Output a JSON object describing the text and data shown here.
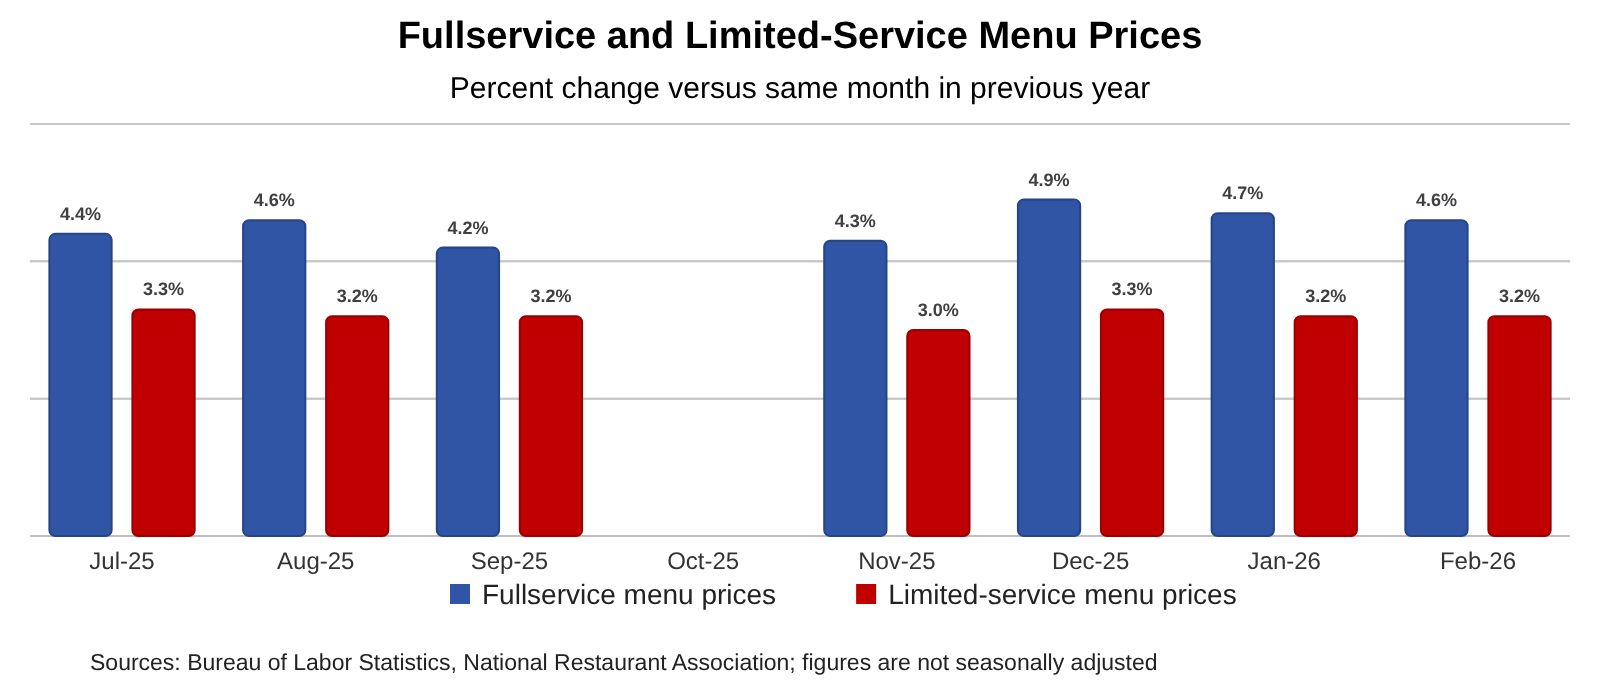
{
  "chart_data": {
    "type": "bar",
    "title": "Fullservice and Limited-Service Menu Prices",
    "subtitle": "Percent change versus same month in previous year",
    "categories": [
      "Jul-25",
      "Aug-25",
      "Sep-25",
      "Oct-25",
      "Nov-25",
      "Dec-25",
      "Jan-26",
      "Feb-26"
    ],
    "series": [
      {
        "name": "Fullservice menu prices",
        "color": "#2f55a4",
        "values": [
          4.4,
          4.6,
          4.2,
          null,
          4.3,
          4.9,
          4.7,
          4.6
        ],
        "value_labels": [
          "4.4%",
          "4.6%",
          "4.2%",
          null,
          "4.3%",
          "4.9%",
          "4.7%",
          "4.6%"
        ]
      },
      {
        "name": "Limited-service menu prices",
        "color": "#c00000",
        "values": [
          3.3,
          3.2,
          3.2,
          null,
          3.0,
          3.3,
          3.2,
          3.2
        ],
        "value_labels": [
          "3.3%",
          "3.2%",
          "3.2%",
          null,
          "3.0%",
          "3.3%",
          "3.2%",
          "3.2%"
        ]
      }
    ],
    "ylim": [
      0,
      6
    ],
    "yticks": [
      {
        "value": 0,
        "label": null
      },
      {
        "value": 2,
        "label": null
      },
      {
        "value": 4,
        "label": null
      },
      {
        "value": 6,
        "label": null
      }
    ],
    "grid": "y",
    "tick_labels": "x",
    "legend": "bottom",
    "annotations": [
      "Sources: Bureau of Labor Statistics, National Restaurant Association; figures are not seasonally adjusted"
    ]
  }
}
